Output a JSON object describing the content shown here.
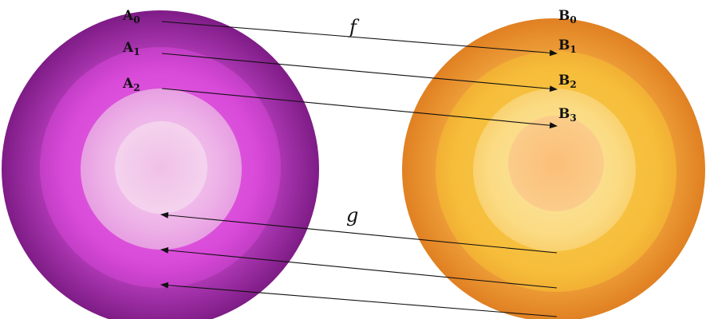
{
  "diagram": {
    "left_set": {
      "colors": [
        "#8a1f8f",
        "#d94ad9",
        "#f2bdea",
        "#f1cce9"
      ],
      "labels": [
        {
          "base": "A",
          "sub": "0"
        },
        {
          "base": "A",
          "sub": "1"
        },
        {
          "base": "A",
          "sub": "2"
        }
      ]
    },
    "right_set": {
      "colors": [
        "#e58a22",
        "#f6bd3a",
        "#fbe08d",
        "#fbc178"
      ],
      "labels": [
        {
          "base": "B",
          "sub": "0"
        },
        {
          "base": "B",
          "sub": "1"
        },
        {
          "base": "B",
          "sub": "2"
        },
        {
          "base": "B",
          "sub": "3"
        }
      ]
    },
    "maps": {
      "f": {
        "label": "f",
        "direction": "left-to-right",
        "arrow_count": 3
      },
      "g": {
        "label": "g",
        "direction": "right-to-left",
        "arrow_count": 3
      }
    }
  }
}
